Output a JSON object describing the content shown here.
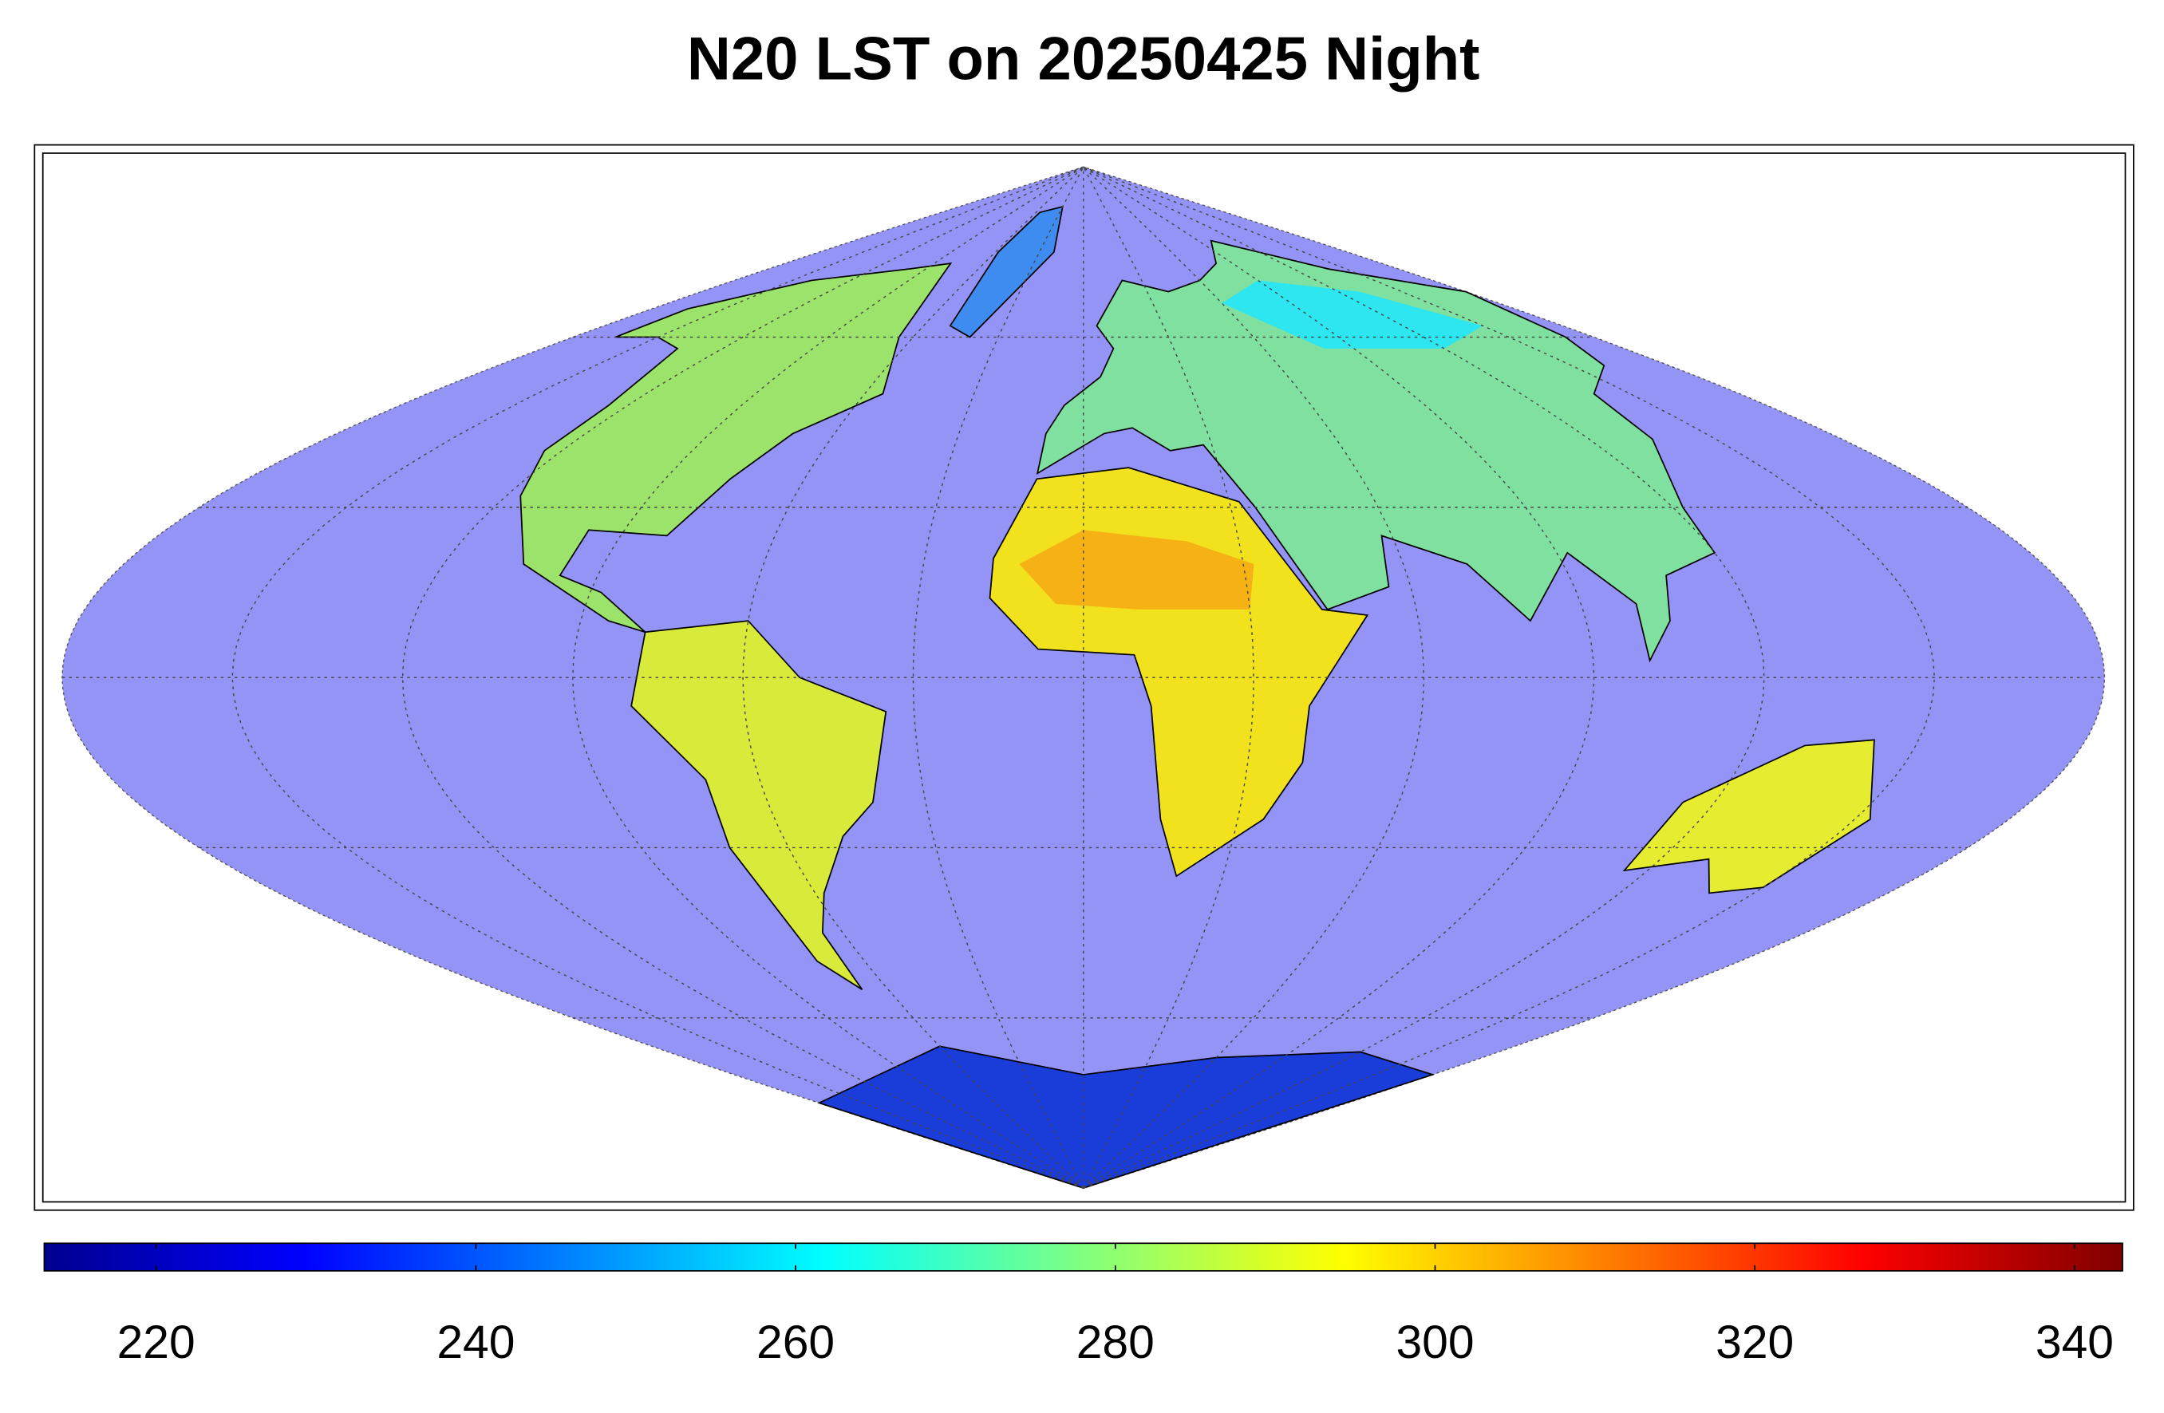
{
  "title": "N20 LST on 20250425 Night",
  "colorbar": {
    "type": "colorbar",
    "colormap": "jet",
    "lim": [
      213,
      343
    ],
    "ticks": [
      220,
      240,
      260,
      280,
      300,
      320,
      340
    ]
  }
}
